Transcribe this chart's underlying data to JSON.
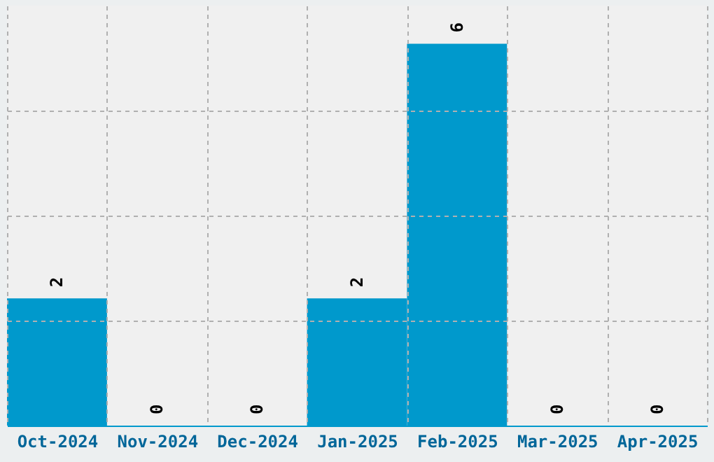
{
  "chart_data": {
    "type": "bar",
    "categories": [
      "Oct-2024",
      "Nov-2024",
      "Dec-2024",
      "Jan-2025",
      "Feb-2025",
      "Mar-2025",
      "Apr-2025"
    ],
    "values": [
      2,
      0,
      0,
      2,
      6,
      0,
      0
    ],
    "color": "#0099cc",
    "data_labels": true,
    "grid": true,
    "tick_labels": "x",
    "ylim": [
      0,
      6.6
    ],
    "yticks": [
      {
        "value": 1.65,
        "label": null
      },
      {
        "value": 3.3,
        "label": null
      },
      {
        "value": 4.95,
        "label": null
      }
    ]
  }
}
